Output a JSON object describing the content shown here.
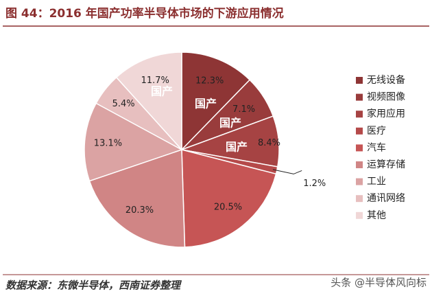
{
  "chart_data": {
    "type": "pie",
    "title": "图 44：2016 年国产功率半导体市场的下游应用情况",
    "categories": [
      "无线设备",
      "视频图像",
      "家用应用",
      "医疗",
      "汽车",
      "运算存储",
      "工业",
      "通讯网络",
      "其他"
    ],
    "values": [
      12.3,
      7.1,
      8.4,
      1.2,
      20.5,
      20.3,
      13.1,
      5.4,
      11.7
    ],
    "value_labels": [
      "12.3%",
      "7.1%",
      "8.4%",
      "1.2%",
      "20.5%",
      "20.3%",
      "13.1%",
      "5.4%",
      "11.7%"
    ],
    "colors": [
      "#8e3535",
      "#993c3c",
      "#a64343",
      "#b54a4a",
      "#c65555",
      "#d08585",
      "#dba3a3",
      "#e7bfbf",
      "#f0d7d7"
    ],
    "annotations": [
      "国产",
      "国产",
      "国产",
      "国产"
    ],
    "source": "数据来源：东微半导体，西南证券整理",
    "watermark": "头条 @半导体风向标"
  }
}
